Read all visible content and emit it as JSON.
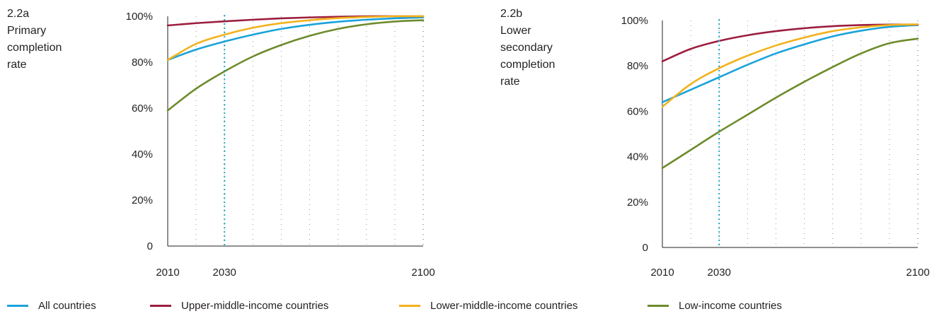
{
  "colors": {
    "all_countries": "#1aa3da",
    "upper_middle": "#9c1e3f",
    "lower_middle": "#f2b21c",
    "low_income": "#6e8b2c",
    "marker_2030": "#20a8c6",
    "axis": "#231f20",
    "grid": "#9a9a9a"
  },
  "legend": [
    {
      "label": "All countries",
      "color": "#1aa3da"
    },
    {
      "label": "Upper-middle-income countries",
      "color": "#9c1e3f"
    },
    {
      "label": "Lower-middle-income countries",
      "color": "#f2b21c"
    },
    {
      "label": "Low-income countries",
      "color": "#6e8b2c"
    }
  ],
  "chart_data": [
    {
      "type": "line",
      "title": "2.2a\nPrimary\ncompletion\nrate",
      "x_ticks": [
        2010,
        2030,
        2100
      ],
      "y_ticks": [
        {
          "value": 0,
          "label": "0"
        },
        {
          "value": 20,
          "label": "20%"
        },
        {
          "value": 40,
          "label": "40%"
        },
        {
          "value": 60,
          "label": "60%"
        },
        {
          "value": 80,
          "label": "80%"
        },
        {
          "value": 100,
          "label": "100%"
        }
      ],
      "xlim": [
        2010,
        2100
      ],
      "ylim": [
        0,
        100
      ],
      "vertical_marker": 2030,
      "grid": "dotted vertical lines every 10 years",
      "x": [
        2010,
        2020,
        2030,
        2040,
        2050,
        2060,
        2070,
        2080,
        2090,
        2100
      ],
      "series": [
        {
          "name": "All countries",
          "color": "#1aa3da",
          "values": [
            81,
            85.5,
            89,
            92,
            94.5,
            96.3,
            97.6,
            98.5,
            99.1,
            99.5
          ]
        },
        {
          "name": "Upper-middle-income countries",
          "color": "#9c1e3f",
          "values": [
            96,
            97,
            97.8,
            98.5,
            99.1,
            99.5,
            99.8,
            100,
            100,
            100
          ]
        },
        {
          "name": "Lower-middle-income countries",
          "color": "#f2b21c",
          "values": [
            81,
            88,
            92,
            95,
            97,
            98.3,
            99.2,
            99.7,
            100,
            100
          ]
        },
        {
          "name": "Low-income countries",
          "color": "#6e8b2c",
          "values": [
            59,
            68.5,
            76,
            82.5,
            87.5,
            91.5,
            94.5,
            96.5,
            97.7,
            98.3
          ]
        }
      ]
    },
    {
      "type": "line",
      "title": "2.2b\nLower\nsecondary\ncompletion\nrate",
      "x_ticks": [
        2010,
        2030,
        2100
      ],
      "y_ticks": [
        {
          "value": 0,
          "label": "0"
        },
        {
          "value": 20,
          "label": "20%"
        },
        {
          "value": 40,
          "label": "40%"
        },
        {
          "value": 60,
          "label": "60%"
        },
        {
          "value": 80,
          "label": "80%"
        },
        {
          "value": 100,
          "label": "100%"
        }
      ],
      "xlim": [
        2010,
        2100
      ],
      "ylim": [
        0,
        100
      ],
      "vertical_marker": 2030,
      "grid": "dotted vertical lines every 10 years",
      "x": [
        2010,
        2020,
        2030,
        2040,
        2050,
        2060,
        2070,
        2080,
        2090,
        2100
      ],
      "series": [
        {
          "name": "All countries",
          "color": "#1aa3da",
          "values": [
            64,
            69.5,
            75,
            80.5,
            85.5,
            89.5,
            93,
            95.5,
            97.2,
            98
          ]
        },
        {
          "name": "Upper-middle-income countries",
          "color": "#9c1e3f",
          "values": [
            82,
            87.5,
            91,
            93.5,
            95.3,
            96.6,
            97.5,
            98,
            98.2,
            98.2
          ]
        },
        {
          "name": "Lower-middle-income countries",
          "color": "#f2b21c",
          "values": [
            62,
            72,
            79,
            84.5,
            89,
            92.5,
            95.3,
            97,
            98,
            98.3
          ]
        },
        {
          "name": "Low-income countries",
          "color": "#6e8b2c",
          "values": [
            35,
            43,
            51,
            58.5,
            66,
            73,
            79.5,
            85.5,
            90,
            92
          ]
        }
      ]
    }
  ]
}
